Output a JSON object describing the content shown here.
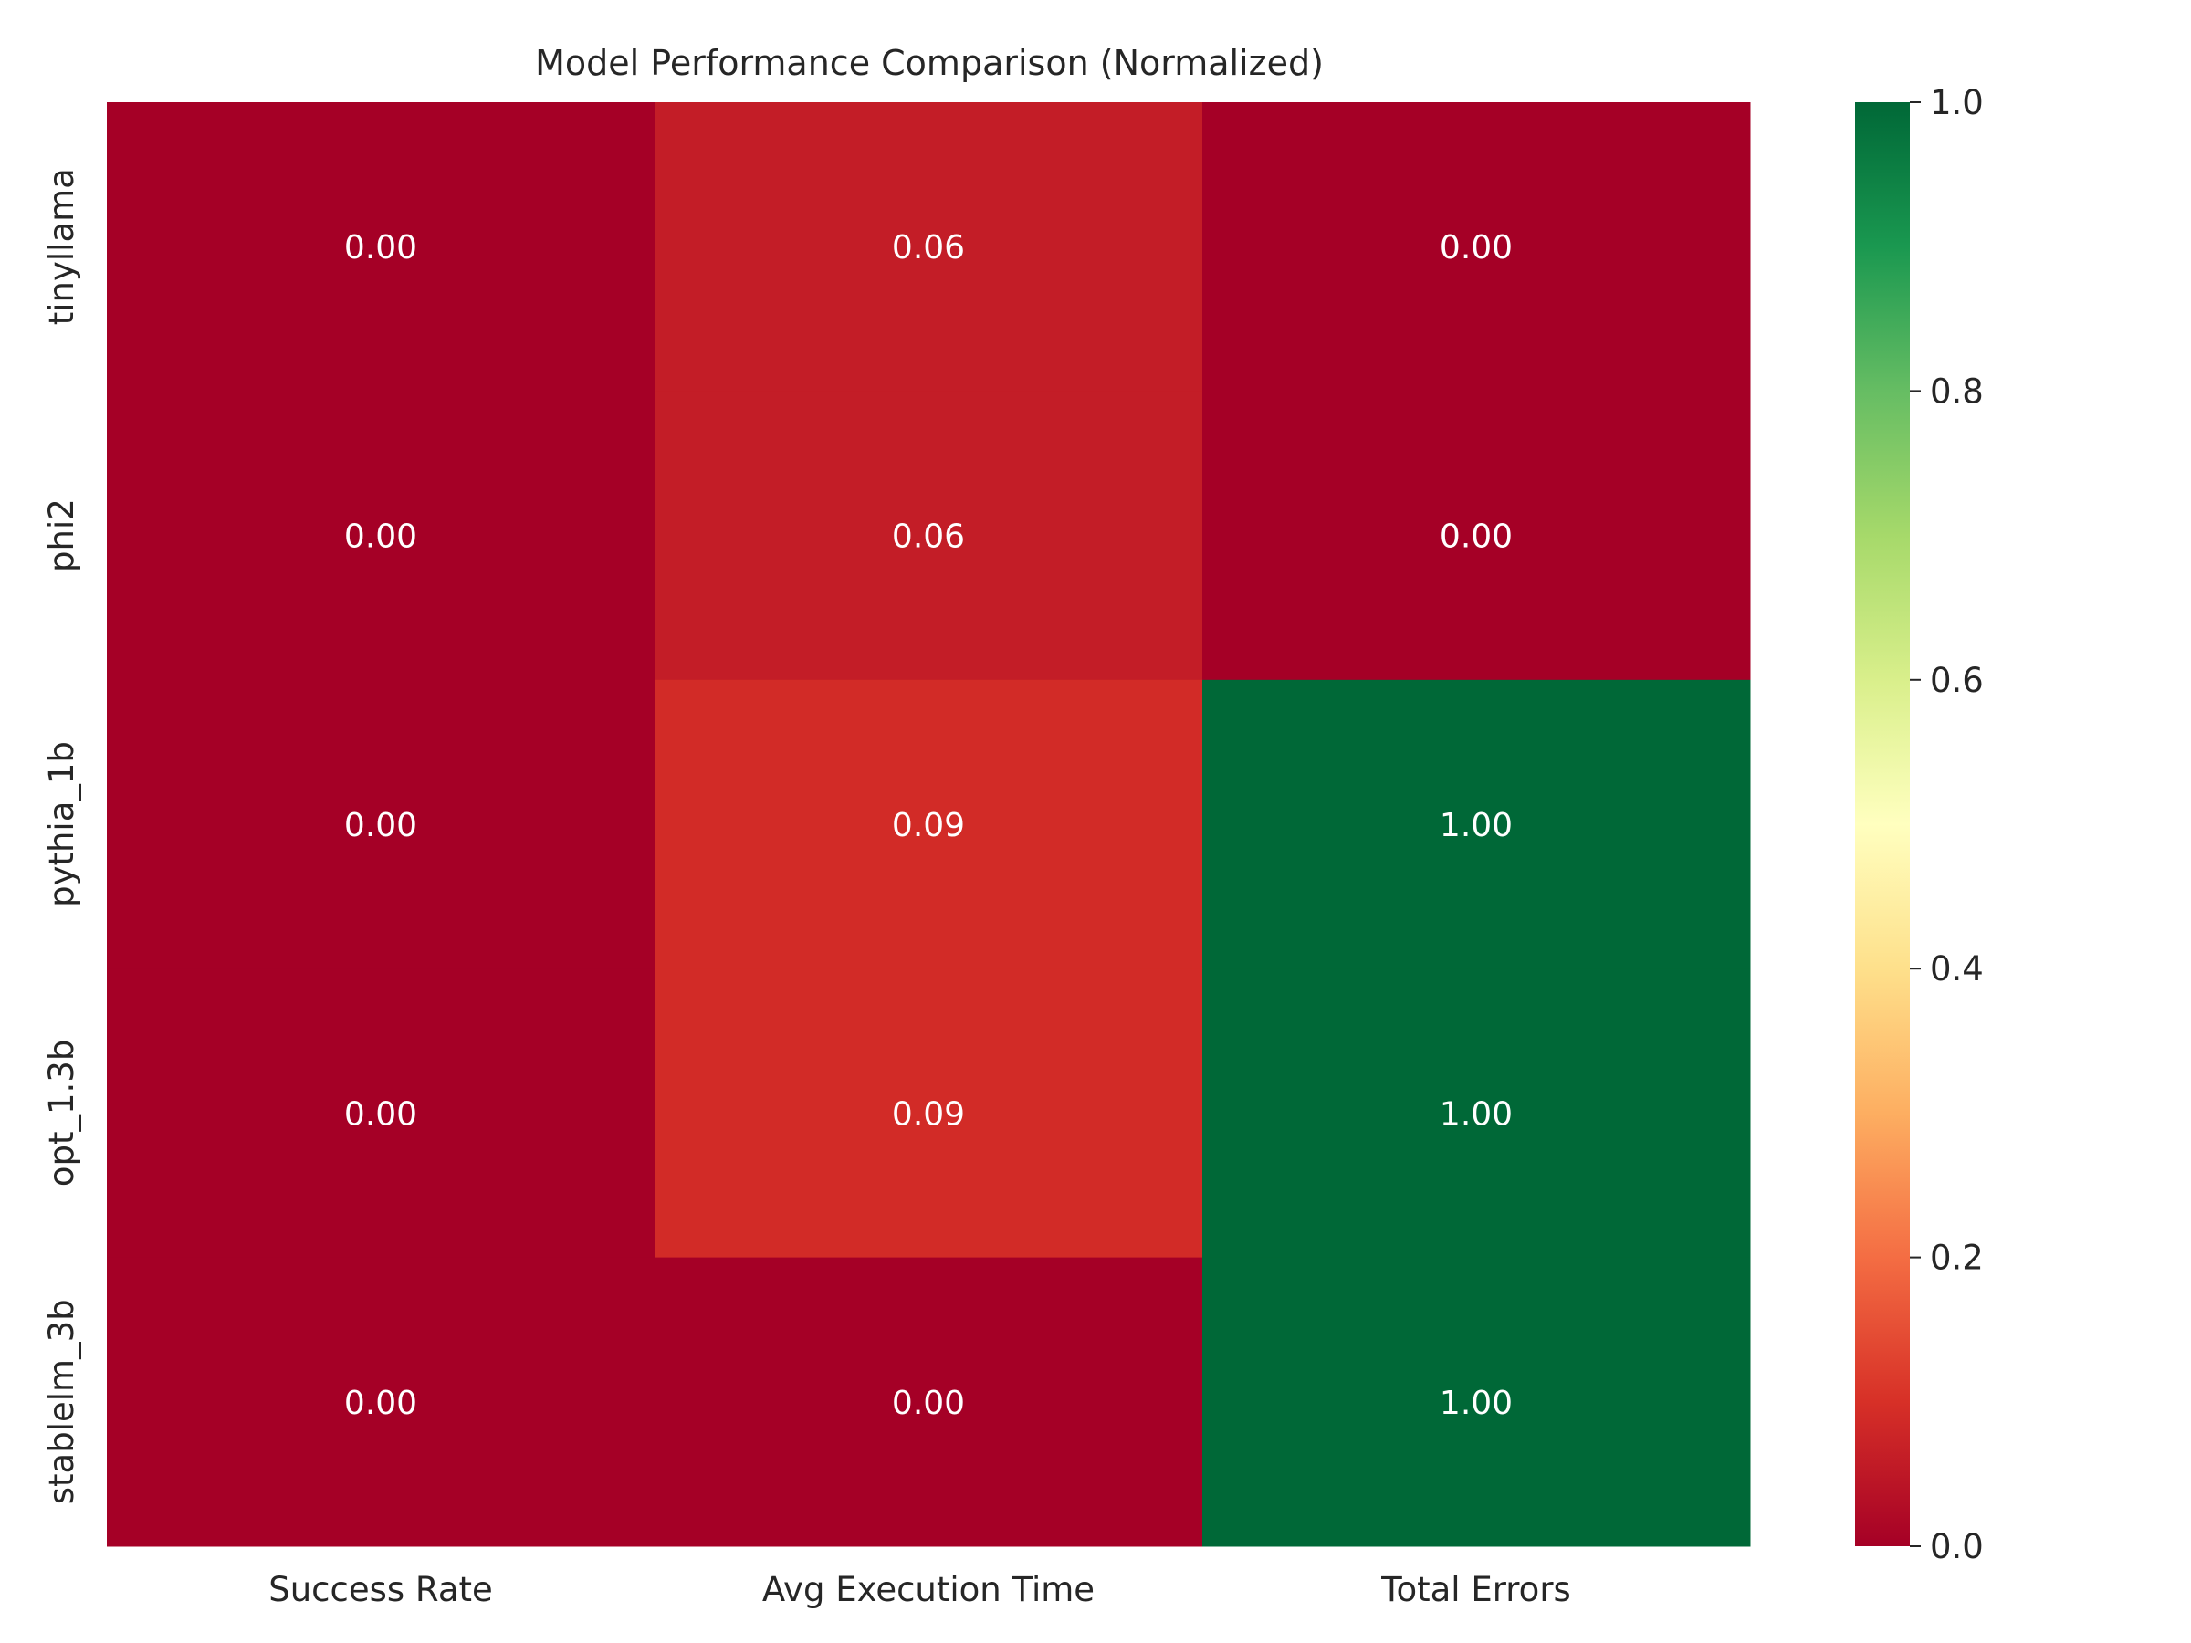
{
  "chart_data": {
    "type": "heatmap",
    "title": "Model Performance Comparison (Normalized)",
    "xlabel": "",
    "ylabel": "",
    "columns": [
      "Success Rate",
      "Avg Execution Time",
      "Total Errors"
    ],
    "rows": [
      "tinyllama",
      "phi2",
      "pythia_1b",
      "opt_1.3b",
      "stablelm_3b"
    ],
    "values": [
      [
        0.0,
        0.06,
        0.0
      ],
      [
        0.0,
        0.06,
        0.0
      ],
      [
        0.0,
        0.09,
        1.0
      ],
      [
        0.0,
        0.09,
        1.0
      ],
      [
        0.0,
        0.0,
        1.0
      ]
    ],
    "annotation_format": "0.00",
    "colormap": "RdYlGn",
    "vmin": 0.0,
    "vmax": 1.0,
    "colorbar_ticks": [
      "0.0",
      "0.2",
      "0.4",
      "0.6",
      "0.8",
      "1.0"
    ],
    "grid": false,
    "colorbar_position": "right"
  }
}
